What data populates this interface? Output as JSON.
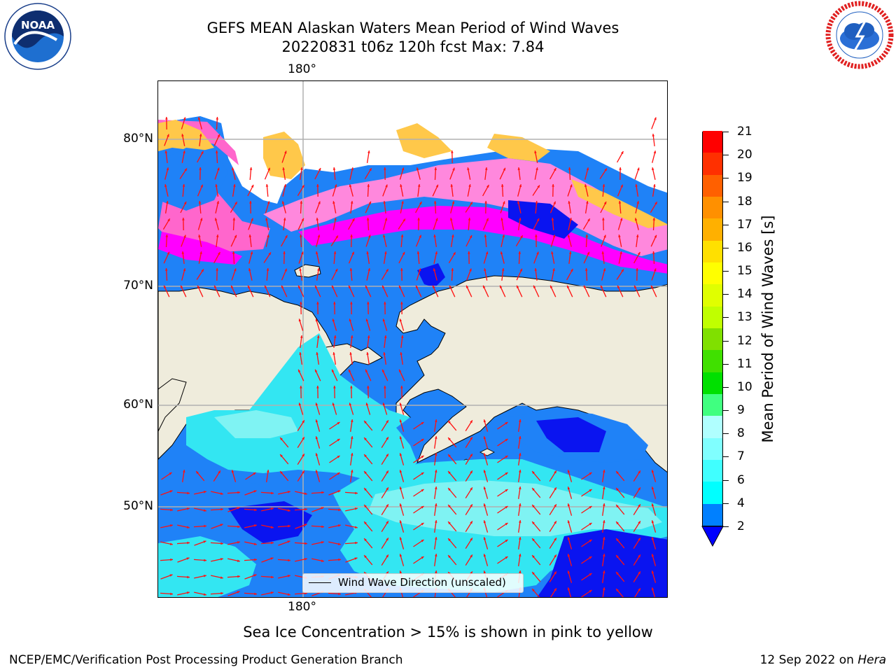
{
  "title": {
    "line1": "GEFS MEAN Alaskan Waters Mean Period of Wind Waves",
    "line2": "20220831 t06z 120h fcst   Max: 7.84"
  },
  "axes": {
    "lon_top": "180°",
    "lon_bottom": "180°",
    "lat_labels": [
      "80°N",
      "70°N",
      "60°N",
      "50°N"
    ]
  },
  "legend": {
    "label": "Wind Wave Direction (unscaled)"
  },
  "colorbar": {
    "title": "Mean Period of Wind Waves [s]",
    "tick_labels": [
      "2",
      "4",
      "6",
      "7",
      "8",
      "9",
      "10",
      "11",
      "12",
      "13",
      "14",
      "15",
      "16",
      "17",
      "18",
      "19",
      "20",
      "21"
    ],
    "colors": [
      "#0080ff",
      "#00ffff",
      "#40ffff",
      "#80ffff",
      "#b0ffff",
      "#40ff80",
      "#00e000",
      "#40e000",
      "#80e000",
      "#c0ff00",
      "#e0ff00",
      "#ffff00",
      "#ffe000",
      "#ffb000",
      "#ff9000",
      "#ff6000",
      "#ff3000",
      "#ff0000"
    ],
    "extend_color": "#0000ff"
  },
  "note": "Sea Ice Concentration > 15% is shown in pink to yellow",
  "footer": {
    "left": "NCEP/EMC/Verification Post Processing Product Generation Branch",
    "right_date": "12 Sep 2022 on ",
    "right_host": "Hera"
  },
  "logos": {
    "noaa_text": "NOAA",
    "noaa_ring": "NATIONAL OCEANIC AND ATMOSPHERIC ADMINISTRATION · U.S. DEPARTMENT OF COMMERCE",
    "nws_ring": "NATIONAL WEATHER SERVICE"
  },
  "map_colors": {
    "land": "#efecdc",
    "ocean_short": "#1f82f7",
    "ocean_mid": "#33e6f2",
    "ocean_long": "#7ff3f3",
    "deep": "#0a14f0",
    "ice_pink": "#ff66cc",
    "ice_magenta": "#ff00ff",
    "ice_yellow": "#ffc84a",
    "arrow": "#ff1010",
    "grid": "#b0b0b0"
  }
}
